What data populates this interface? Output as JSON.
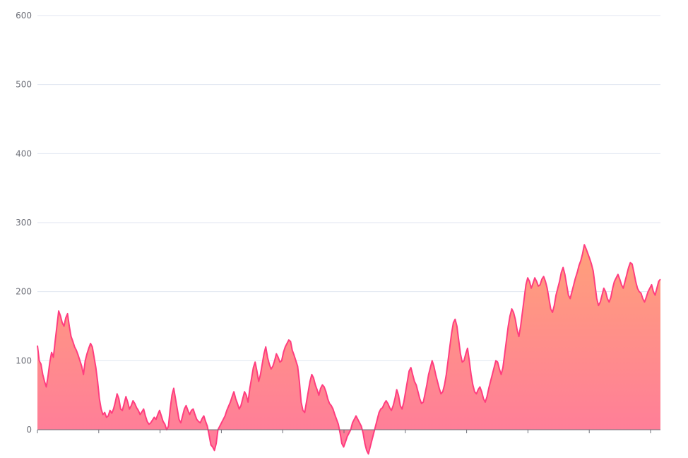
{
  "chart_data": {
    "type": "area",
    "title": "",
    "xlabel": "",
    "ylabel": "",
    "ylim": [
      0,
      600
    ],
    "y_ticks": [
      0,
      100,
      200,
      300,
      400,
      500,
      600
    ],
    "x_tick_count": 11,
    "grid": true,
    "colors": {
      "line": "#ff3d7f",
      "fill_top": "#ffa07a",
      "fill_bottom": "#ff7a9c",
      "grid": "#e0e6f1",
      "axis": "#6e7079"
    },
    "series": [
      {
        "values": [
          122,
          100,
          95,
          80,
          70,
          62,
          78,
          98,
          112,
          105,
          128,
          150,
          172,
          165,
          155,
          150,
          162,
          168,
          150,
          135,
          128,
          120,
          115,
          108,
          100,
          92,
          80,
          100,
          110,
          118,
          125,
          120,
          105,
          90,
          70,
          45,
          30,
          22,
          25,
          18,
          20,
          28,
          24,
          30,
          40,
          52,
          45,
          30,
          28,
          38,
          48,
          40,
          30,
          35,
          42,
          38,
          32,
          28,
          22,
          26,
          30,
          20,
          12,
          8,
          10,
          14,
          18,
          15,
          22,
          28,
          20,
          12,
          8,
          0,
          5,
          30,
          50,
          60,
          45,
          30,
          15,
          10,
          20,
          30,
          35,
          28,
          22,
          28,
          30,
          22,
          15,
          12,
          10,
          16,
          20,
          12,
          5,
          -8,
          -22,
          -25,
          -30,
          -20,
          0,
          5,
          10,
          15,
          20,
          28,
          34,
          40,
          48,
          55,
          45,
          38,
          30,
          35,
          45,
          55,
          50,
          40,
          60,
          75,
          90,
          98,
          85,
          70,
          80,
          95,
          110,
          120,
          105,
          95,
          88,
          92,
          100,
          110,
          105,
          98,
          100,
          112,
          120,
          125,
          130,
          128,
          115,
          108,
          100,
          92,
          70,
          40,
          28,
          25,
          40,
          55,
          70,
          80,
          75,
          65,
          58,
          50,
          60,
          65,
          62,
          55,
          45,
          38,
          35,
          30,
          22,
          15,
          8,
          -5,
          -20,
          -25,
          -18,
          -10,
          -5,
          0,
          10,
          15,
          20,
          15,
          10,
          5,
          -5,
          -20,
          -30,
          -35,
          -25,
          -15,
          -5,
          5,
          15,
          25,
          30,
          32,
          38,
          42,
          38,
          32,
          28,
          35,
          45,
          58,
          50,
          35,
          30,
          40,
          55,
          70,
          85,
          90,
          80,
          70,
          65,
          55,
          45,
          38,
          40,
          52,
          65,
          80,
          90,
          100,
          92,
          80,
          70,
          60,
          52,
          55,
          65,
          80,
          100,
          120,
          140,
          155,
          160,
          150,
          130,
          110,
          98,
          100,
          110,
          118,
          100,
          80,
          65,
          55,
          52,
          58,
          62,
          55,
          45,
          40,
          48,
          60,
          70,
          80,
          90,
          100,
          98,
          88,
          80,
          90,
          110,
          130,
          150,
          165,
          175,
          170,
          160,
          145,
          135,
          150,
          170,
          190,
          210,
          220,
          215,
          205,
          212,
          220,
          215,
          208,
          210,
          218,
          222,
          215,
          205,
          190,
          175,
          170,
          180,
          195,
          205,
          215,
          228,
          235,
          225,
          210,
          195,
          190,
          200,
          210,
          220,
          228,
          238,
          245,
          255,
          268,
          262,
          255,
          248,
          240,
          230,
          210,
          190,
          180,
          185,
          195,
          205,
          200,
          190,
          185,
          192,
          205,
          215,
          220,
          225,
          218,
          210,
          205,
          215,
          225,
          235,
          242,
          240,
          228,
          215,
          205,
          200,
          198,
          190,
          185,
          192,
          200,
          205,
          210,
          200,
          195,
          205,
          215,
          218
        ]
      }
    ]
  }
}
